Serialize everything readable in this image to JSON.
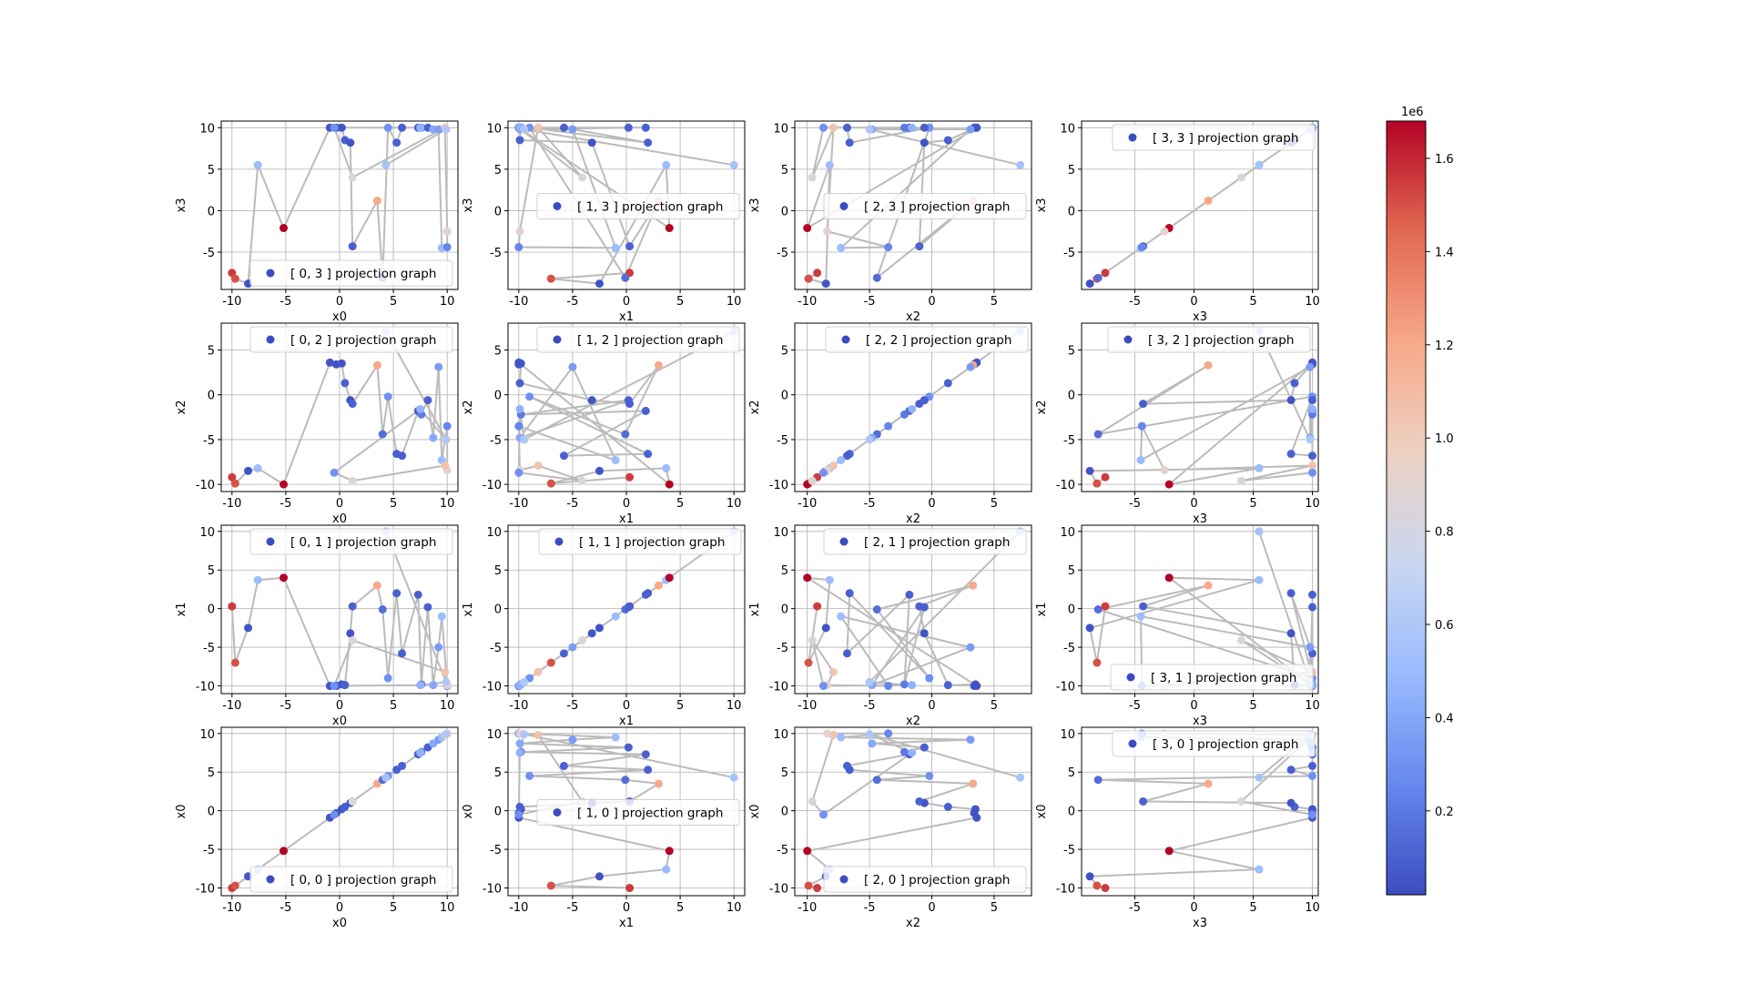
{
  "figure": {
    "colorbar": {
      "cmap": "coolwarm",
      "colors": [
        "#3b4cc0",
        "#6788ee",
        "#9abbff",
        "#c9d7f0",
        "#edd1c2",
        "#f7a889",
        "#e26952",
        "#b40426"
      ],
      "min": 0.02,
      "max": 1.68,
      "ticks": [
        0.2,
        0.4,
        0.6,
        0.8,
        1.0,
        1.2,
        1.4,
        1.6
      ],
      "tick_labels": [
        "0.2",
        "0.4",
        "0.6",
        "0.8",
        "1.0",
        "1.2",
        "1.4",
        "1.6"
      ],
      "offset_label": "1e6"
    },
    "line_color": "#bbbbbb"
  },
  "chart_data": {
    "type": "scatter",
    "description_rows": [
      "x3",
      "x2",
      "x1",
      "x0"
    ],
    "variables": [
      "x0",
      "x1",
      "x2",
      "x3"
    ],
    "axis_limits": {
      "x0": [
        -11,
        11
      ],
      "x1": [
        -11,
        11
      ],
      "x2": [
        -11,
        8
      ],
      "x3": [
        -9.5,
        10.5
      ]
    },
    "ticks": {
      "x0": [
        -10,
        -5,
        0,
        5,
        10
      ],
      "x1": [
        -10,
        -5,
        0,
        5,
        10
      ],
      "x2": [
        -10,
        -5,
        0,
        5
      ],
      "x3": [
        -5,
        0,
        5,
        10
      ]
    },
    "row_y_ticks": {
      "x3": [
        -5,
        0,
        5,
        10
      ],
      "x2": [
        -10,
        -5,
        0,
        5
      ],
      "x1": [
        -10,
        -5,
        0,
        5,
        10
      ],
      "x0": [
        -10,
        -5,
        0,
        5,
        10
      ]
    },
    "row_y_limits": {
      "x3": [
        -9.5,
        10.8
      ],
      "x2": [
        -10.8,
        8
      ],
      "x1": [
        -11,
        10.8
      ],
      "x0": [
        -11,
        10.8
      ]
    },
    "points": {
      "x0": [
        -10,
        -9.7,
        -8.5,
        -7.6,
        -5.2,
        -0.9,
        -0.3,
        0.2,
        0.5,
        1,
        1.2,
        3.5,
        4,
        4.5,
        5.3,
        5.8,
        7.3,
        7.6,
        8.2,
        8.7,
        9.2,
        9.5,
        10,
        10,
        9.8,
        1.2,
        -0.5,
        7.5,
        9.9,
        4.3
      ],
      "x1": [
        0.3,
        -7,
        -2.5,
        3.7,
        4,
        -10,
        -10,
        -9.8,
        -9.9,
        -3.2,
        0.3,
        3,
        -0.1,
        -9,
        2,
        -5.8,
        1.8,
        -9.8,
        0.2,
        -9.9,
        -5,
        -1,
        -10,
        -9.9,
        -8.2,
        -4.1,
        -10,
        -9.9,
        -9.5,
        10
      ],
      "x2": [
        -9.2,
        -9.9,
        -8.5,
        -8.2,
        -10,
        3.6,
        3.4,
        3.5,
        1.3,
        -0.6,
        -1,
        3.3,
        -4.4,
        -0.2,
        -6.6,
        -6.8,
        -1.8,
        -2.2,
        -0.6,
        -4.8,
        3.1,
        -7.3,
        -3.5,
        -8.4,
        -7.9,
        -9.6,
        -8.7,
        -1.6,
        -5,
        7.1
      ],
      "x3": [
        -7.5,
        -8.2,
        -8.8,
        5.5,
        -2.1,
        10,
        10,
        10,
        8.5,
        8.2,
        -4.3,
        1.2,
        -8.1,
        10,
        8.2,
        10,
        10,
        10,
        10,
        9.8,
        9.8,
        -4.5,
        -4.4,
        -2.5,
        10,
        4,
        10,
        10,
        9.8,
        5.5
      ],
      "v": [
        1.55,
        1.5,
        0.05,
        0.5,
        1.68,
        0.05,
        0.05,
        0.05,
        0.1,
        0.05,
        0.1,
        1.2,
        0.15,
        0.3,
        0.1,
        0.1,
        0.1,
        0.2,
        0.1,
        0.4,
        0.35,
        0.5,
        0.25,
        0.9,
        1.05,
        0.85,
        0.3,
        0.45,
        0.6,
        0.55
      ]
    },
    "subplots": [
      {
        "row": 0,
        "col": 0,
        "x": "x0",
        "y": "x3",
        "legend": "[ 0, 3 ] projection graph",
        "legend_loc": "lower-right",
        "xlabel": "x0",
        "ylabel": "x3"
      },
      {
        "row": 0,
        "col": 1,
        "x": "x1",
        "y": "x3",
        "legend": "[ 1, 3 ] projection graph",
        "legend_loc": "center-right",
        "xlabel": "x1",
        "ylabel": "x3"
      },
      {
        "row": 0,
        "col": 2,
        "x": "x2",
        "y": "x3",
        "legend": "[ 2, 3 ] projection graph",
        "legend_loc": "center-right",
        "xlabel": "x2",
        "ylabel": "x3"
      },
      {
        "row": 0,
        "col": 3,
        "x": "x3",
        "y": "x3",
        "legend": "[ 3, 3 ] projection graph",
        "legend_loc": "upper-left",
        "xlabel": "x3",
        "ylabel": "x3"
      },
      {
        "row": 1,
        "col": 0,
        "x": "x0",
        "y": "x2",
        "legend": "[ 0, 2 ] projection graph",
        "legend_loc": "upper-right",
        "xlabel": "x0",
        "ylabel": "x2"
      },
      {
        "row": 1,
        "col": 1,
        "x": "x1",
        "y": "x2",
        "legend": "[ 1, 2 ] projection graph",
        "legend_loc": "upper-right",
        "xlabel": "x1",
        "ylabel": "x2"
      },
      {
        "row": 1,
        "col": 2,
        "x": "x2",
        "y": "x2",
        "legend": "[ 2, 2 ] projection graph",
        "legend_loc": "upper-left",
        "xlabel": "x2",
        "ylabel": "x2"
      },
      {
        "row": 1,
        "col": 3,
        "x": "x3",
        "y": "x2",
        "legend": "[ 3, 2 ] projection graph",
        "legend_loc": "upper-center",
        "xlabel": "x3",
        "ylabel": "x2"
      },
      {
        "row": 2,
        "col": 0,
        "x": "x0",
        "y": "x1",
        "legend": "[ 0, 1 ] projection graph",
        "legend_loc": "upper-right",
        "xlabel": "x0",
        "ylabel": "x1"
      },
      {
        "row": 2,
        "col": 1,
        "x": "x1",
        "y": "x1",
        "legend": "[ 1, 1 ] projection graph",
        "legend_loc": "upper-left",
        "xlabel": "x1",
        "ylabel": "x1"
      },
      {
        "row": 2,
        "col": 2,
        "x": "x2",
        "y": "x1",
        "legend": "[ 2, 1 ] projection graph",
        "legend_loc": "upper-right",
        "xlabel": "x2",
        "ylabel": "x1"
      },
      {
        "row": 2,
        "col": 3,
        "x": "x3",
        "y": "x1",
        "legend": "[ 3, 1 ] projection graph",
        "legend_loc": "lower-right",
        "xlabel": "x3",
        "ylabel": "x1"
      },
      {
        "row": 3,
        "col": 0,
        "x": "x0",
        "y": "x0",
        "legend": "[ 0, 0 ] projection graph",
        "legend_loc": "lower-right",
        "xlabel": "x0",
        "ylabel": "x0"
      },
      {
        "row": 3,
        "col": 1,
        "x": "x1",
        "y": "x0",
        "legend": "[ 1, 0 ] projection graph",
        "legend_loc": "center-right",
        "xlabel": "x1",
        "ylabel": "x0"
      },
      {
        "row": 3,
        "col": 2,
        "x": "x2",
        "y": "x0",
        "legend": "[ 2, 0 ] projection graph",
        "legend_loc": "lower-right",
        "xlabel": "x2",
        "ylabel": "x0"
      },
      {
        "row": 3,
        "col": 3,
        "x": "x3",
        "y": "x0",
        "legend": "[ 3, 0 ] projection graph",
        "legend_loc": "upper-left",
        "xlabel": "x3",
        "ylabel": "x0"
      }
    ]
  }
}
